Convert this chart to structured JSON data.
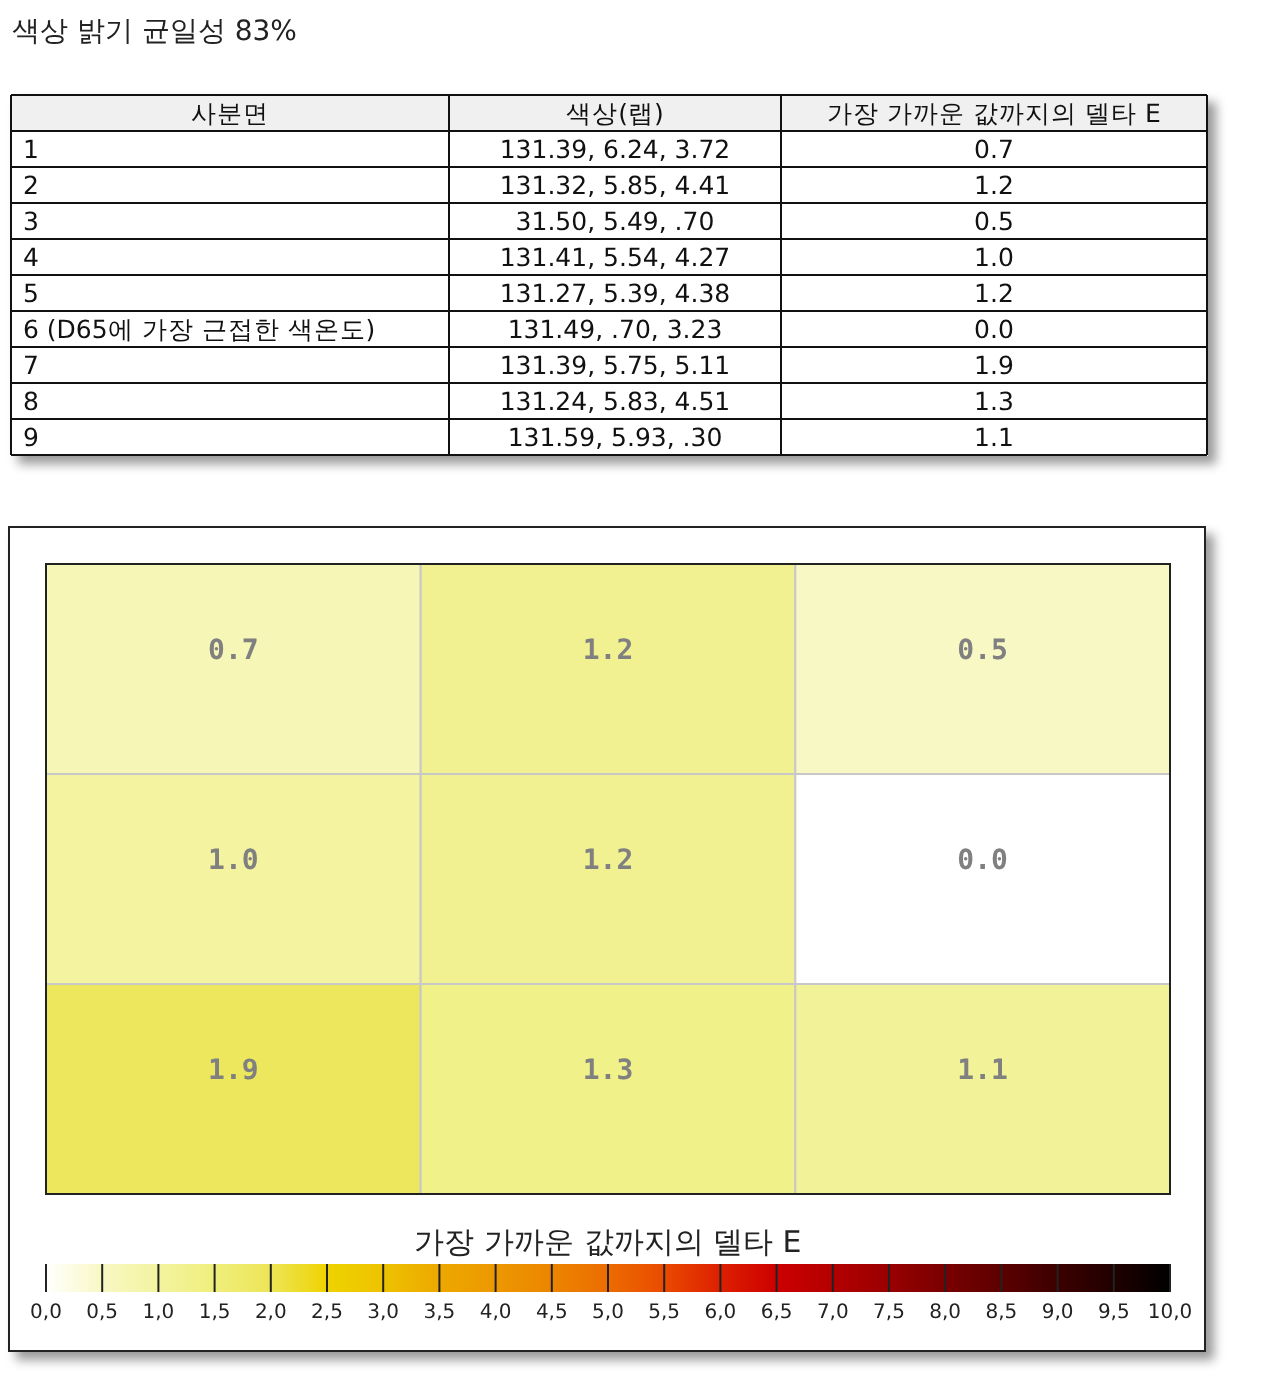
{
  "chart_data": [
    {
      "type": "other",
      "title": "색상 밝기 균일성 83%",
      "categories": [
        "사분면",
        "색상(랩)",
        "가장 가까운 값까지의 델타 E"
      ],
      "cell_labels": [
        [
          "1",
          "131.39, 6.24, 3.72",
          "0.7"
        ],
        [
          "2",
          "131.32, 5.85, 4.41",
          "1.2"
        ],
        [
          "3",
          "31.50, 5.49, .70",
          "0.5"
        ],
        [
          "4",
          "131.41, 5.54, 4.27",
          "1.0"
        ],
        [
          "5",
          "131.27, 5.39, 4.38",
          "1.2"
        ],
        [
          "6 (D65에 가장 근접한 색온도)",
          "131.49, .70, 3.23",
          "0.0"
        ],
        [
          "7",
          "131.39, 5.75, 5.11",
          "1.9"
        ],
        [
          "8",
          "131.24, 5.83, 4.51",
          "1.3"
        ],
        [
          "9",
          "131.59, 5.93, .30",
          "1.1"
        ]
      ]
    },
    {
      "type": "heatmap",
      "categories": [
        null,
        null,
        null
      ],
      "y_categories": [
        null,
        null,
        null
      ],
      "cells": [
        [
          0.7,
          1.2,
          0.5
        ],
        [
          1.0,
          1.2,
          0.0
        ],
        [
          1.9,
          1.3,
          1.1
        ]
      ],
      "cell_labels": [
        [
          "0.7",
          "1.2",
          "0.5"
        ],
        [
          "1.0",
          "1.2",
          "0.0"
        ],
        [
          "1.9",
          "1.3",
          "1.1"
        ]
      ],
      "clabel": "가장 가까운 값까지의 델타 E",
      "clim": [
        0,
        10
      ],
      "cticks": [
        {
          "value": 0,
          "label": "0,0"
        },
        {
          "value": 0.5,
          "label": "0,5"
        },
        {
          "value": 1,
          "label": "1,0"
        },
        {
          "value": 1.5,
          "label": "1,5"
        },
        {
          "value": 2,
          "label": "2,0"
        },
        {
          "value": 2.5,
          "label": "2,5"
        },
        {
          "value": 3,
          "label": "3,0"
        },
        {
          "value": 3.5,
          "label": "3,5"
        },
        {
          "value": 4,
          "label": "4,0"
        },
        {
          "value": 4.5,
          "label": "4,5"
        },
        {
          "value": 5,
          "label": "5,0"
        },
        {
          "value": 5.5,
          "label": "5,5"
        },
        {
          "value": 6,
          "label": "6,0"
        },
        {
          "value": 6.5,
          "label": "6,5"
        },
        {
          "value": 7,
          "label": "7,0"
        },
        {
          "value": 7.5,
          "label": "7,5"
        },
        {
          "value": 8,
          "label": "8,0"
        },
        {
          "value": 8.5,
          "label": "8,5"
        },
        {
          "value": 9,
          "label": "9,0"
        },
        {
          "value": 9.5,
          "label": "9,5"
        },
        {
          "value": 10,
          "label": "10,0"
        }
      ]
    }
  ]
}
